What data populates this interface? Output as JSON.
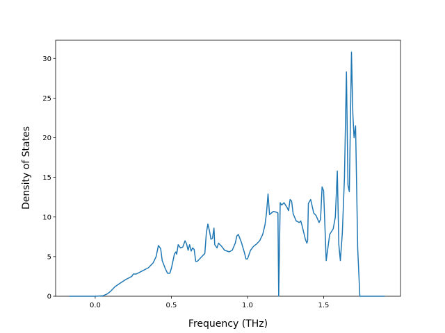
{
  "chart_data": {
    "type": "line",
    "xlabel": "Frequency (THz)",
    "ylabel": "Density of States",
    "x": [
      -0.17,
      0.0,
      0.05,
      0.08,
      0.1,
      0.13,
      0.16,
      0.2,
      0.24,
      0.25,
      0.27,
      0.3,
      0.35,
      0.38,
      0.4,
      0.415,
      0.43,
      0.44,
      0.46,
      0.475,
      0.49,
      0.5,
      0.52,
      0.53,
      0.535,
      0.545,
      0.56,
      0.575,
      0.59,
      0.6,
      0.61,
      0.62,
      0.63,
      0.64,
      0.65,
      0.66,
      0.67,
      0.7,
      0.72,
      0.73,
      0.74,
      0.75,
      0.76,
      0.77,
      0.78,
      0.785,
      0.8,
      0.81,
      0.83,
      0.85,
      0.88,
      0.9,
      0.92,
      0.93,
      0.94,
      0.96,
      0.98,
      0.99,
      1.0,
      1.02,
      1.04,
      1.06,
      1.08,
      1.1,
      1.115,
      1.125,
      1.135,
      1.145,
      1.17,
      1.19,
      1.2,
      1.205,
      1.215,
      1.225,
      1.24,
      1.26,
      1.27,
      1.28,
      1.29,
      1.3,
      1.32,
      1.34,
      1.35,
      1.36,
      1.38,
      1.39,
      1.395,
      1.4,
      1.415,
      1.435,
      1.45,
      1.47,
      1.48,
      1.49,
      1.5,
      1.517,
      1.54,
      1.563,
      1.577,
      1.59,
      1.6,
      1.61,
      1.623,
      1.637,
      1.65,
      1.66,
      1.669,
      1.683,
      1.692,
      1.7,
      1.71,
      1.724,
      1.738,
      1.9
    ],
    "y": [
      0,
      0,
      0.05,
      0.3,
      0.6,
      1.2,
      1.6,
      2.1,
      2.5,
      2.8,
      2.8,
      3.1,
      3.6,
      4.2,
      5.0,
      6.4,
      6.0,
      4.5,
      3.5,
      2.9,
      2.9,
      3.5,
      5.3,
      5.6,
      5.3,
      6.5,
      6.1,
      6.2,
      7.0,
      6.6,
      5.8,
      6.5,
      5.7,
      6.1,
      5.9,
      4.4,
      4.4,
      5.0,
      5.4,
      8.0,
      9.1,
      8.3,
      7.2,
      7.3,
      8.6,
      6.5,
      6.1,
      6.7,
      6.3,
      5.8,
      5.6,
      5.8,
      6.7,
      7.6,
      7.8,
      6.8,
      5.5,
      4.7,
      4.7,
      5.8,
      6.3,
      6.6,
      7.0,
      7.8,
      9.0,
      10.5,
      12.9,
      10.3,
      10.7,
      10.6,
      10.5,
      0,
      11.8,
      11.5,
      11.8,
      11.2,
      10.8,
      12.2,
      12.0,
      10.4,
      9.5,
      9.3,
      9.5,
      8.8,
      7.2,
      6.7,
      7.0,
      11.7,
      12.2,
      10.5,
      10.2,
      9.3,
      9.7,
      13.8,
      13.3,
      4.5,
      7.8,
      8.5,
      10.0,
      15.8,
      6.5,
      4.5,
      8.0,
      15.0,
      28.3,
      14.0,
      13.2,
      30.8,
      23.0,
      20.0,
      21.5,
      6.0,
      0,
      0
    ],
    "color": "#1f77b4",
    "xlim": [
      -0.26,
      2.005
    ],
    "ylim": [
      0,
      32.3
    ],
    "xticks": [
      {
        "value": 0,
        "label": "0.0"
      },
      0.5,
      {
        "value": 1,
        "label": "1.0"
      },
      1.5
    ],
    "yticks": [
      0,
      5,
      10,
      15,
      20,
      25,
      30
    ]
  }
}
